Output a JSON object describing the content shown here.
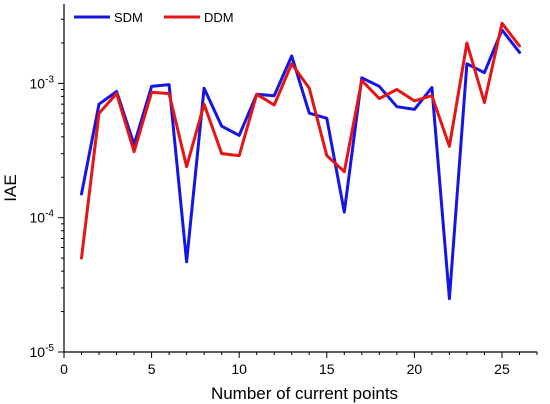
{
  "chart_data": {
    "type": "line",
    "title": "",
    "xlabel": "Number of current points",
    "ylabel": "IAE",
    "yscale": "log",
    "xlim": [
      0,
      27
    ],
    "ylim": [
      1e-05,
      0.0039
    ],
    "x_ticks": [
      0,
      5,
      10,
      15,
      20,
      25
    ],
    "y_ticks": [
      {
        "value": 1e-05,
        "base": "10",
        "exp": "-5"
      },
      {
        "value": 0.0001,
        "base": "10",
        "exp": "-4"
      },
      {
        "value": 0.001,
        "base": "10",
        "exp": "-3"
      }
    ],
    "grid": false,
    "legend_position": "top-left",
    "x": [
      1,
      2,
      3,
      4,
      5,
      6,
      7,
      8,
      9,
      10,
      11,
      12,
      13,
      14,
      15,
      16,
      17,
      18,
      19,
      20,
      21,
      22,
      23,
      24,
      25,
      26
    ],
    "series": [
      {
        "name": "SDM",
        "color": "#1515e6",
        "values": [
          0.00015,
          0.0007,
          0.00087,
          0.00035,
          0.00095,
          0.00098,
          4.7e-05,
          0.00092,
          0.00048,
          0.00041,
          0.00083,
          0.00081,
          0.0016,
          0.0006,
          0.00055,
          0.00011,
          0.0011,
          0.00095,
          0.00067,
          0.00064,
          0.00093,
          2.5e-05,
          0.0014,
          0.0012,
          0.0025,
          0.0017
        ]
      },
      {
        "name": "DDM",
        "color": "#e61515",
        "values": [
          5e-05,
          0.0006,
          0.00084,
          0.00031,
          0.00086,
          0.00084,
          0.00024,
          0.0007,
          0.0003,
          0.00029,
          0.00083,
          0.00069,
          0.0014,
          0.00092,
          0.00029,
          0.00022,
          0.00105,
          0.00077,
          0.0009,
          0.00074,
          0.00081,
          0.00034,
          0.002,
          0.00072,
          0.0028,
          0.0019
        ]
      }
    ]
  }
}
